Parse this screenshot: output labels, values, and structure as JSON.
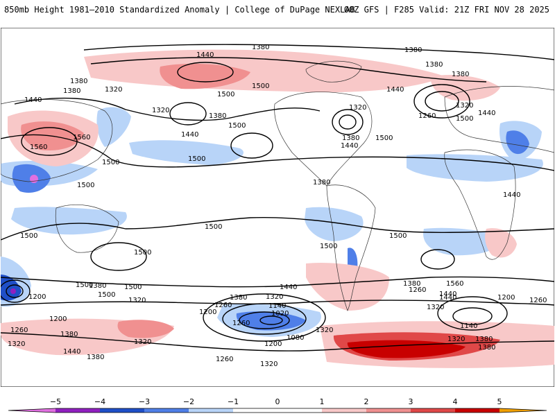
{
  "header": {
    "title": "850mb Height 1981–2010 Standardized Anomaly | College of DuPage NEXLAB",
    "run_info": "00Z GFS | F285 Valid: 21Z FRI NOV 28 2025"
  },
  "colors": {
    "neg5": "#e070e0",
    "neg4": "#9020c0",
    "neg3": "#1f4fc8",
    "neg2": "#4f7fe8",
    "neg1": "#b8d4f8",
    "pos1": "#f8c8c8",
    "pos2": "#f09090",
    "pos3": "#e04848",
    "pos4": "#c80000",
    "pos5": "#f0a000"
  },
  "colorbar": {
    "ticks": [
      "−5",
      "−4",
      "−3",
      "−2",
      "−1",
      "0",
      "1",
      "2",
      "3",
      "4",
      "5"
    ]
  },
  "contour_labels": [
    {
      "text": "1380"
    },
    {
      "text": "1440"
    },
    {
      "text": "1380"
    },
    {
      "text": "1380"
    },
    {
      "text": "1380"
    },
    {
      "text": "1380"
    },
    {
      "text": "1380"
    },
    {
      "text": "1320"
    },
    {
      "text": "1320"
    },
    {
      "text": "1500"
    },
    {
      "text": "1440"
    },
    {
      "text": "1500"
    },
    {
      "text": "1440"
    },
    {
      "text": "1320"
    },
    {
      "text": "1320"
    },
    {
      "text": "1380"
    },
    {
      "text": "1440"
    },
    {
      "text": "1260"
    },
    {
      "text": "1380"
    },
    {
      "text": "1440"
    },
    {
      "text": "1500"
    },
    {
      "text": "1560"
    },
    {
      "text": "1560"
    },
    {
      "text": "1500"
    },
    {
      "text": "1440"
    },
    {
      "text": "1500"
    },
    {
      "text": "1500"
    },
    {
      "text": "1500"
    },
    {
      "text": "1500"
    },
    {
      "text": "1380"
    },
    {
      "text": "1440"
    },
    {
      "text": "1500"
    },
    {
      "text": "1500"
    },
    {
      "text": "1500"
    },
    {
      "text": "1500"
    },
    {
      "text": "1500"
    },
    {
      "text": "1500"
    },
    {
      "text": "1500"
    },
    {
      "text": "1500"
    },
    {
      "text": "1560"
    },
    {
      "text": "1380"
    },
    {
      "text": "1440"
    },
    {
      "text": "1380"
    },
    {
      "text": "1320"
    },
    {
      "text": "1260"
    },
    {
      "text": "1320"
    },
    {
      "text": "1200"
    },
    {
      "text": "1200"
    },
    {
      "text": "1380"
    },
    {
      "text": "1440"
    },
    {
      "text": "1320"
    },
    {
      "text": "1260"
    },
    {
      "text": "1200"
    },
    {
      "text": "1140"
    },
    {
      "text": "1020"
    },
    {
      "text": "1080"
    },
    {
      "text": "1200"
    },
    {
      "text": "1260"
    },
    {
      "text": "1320"
    },
    {
      "text": "1380"
    },
    {
      "text": "1260"
    },
    {
      "text": "1320"
    },
    {
      "text": "1440"
    },
    {
      "text": "1200"
    },
    {
      "text": "1260"
    },
    {
      "text": "1140"
    },
    {
      "text": "1320"
    },
    {
      "text": "1380"
    },
    {
      "text": "1260"
    },
    {
      "text": "1320"
    },
    {
      "text": "1380"
    },
    {
      "text": "1440"
    },
    {
      "text": "1380"
    },
    {
      "text": "1320"
    }
  ]
}
